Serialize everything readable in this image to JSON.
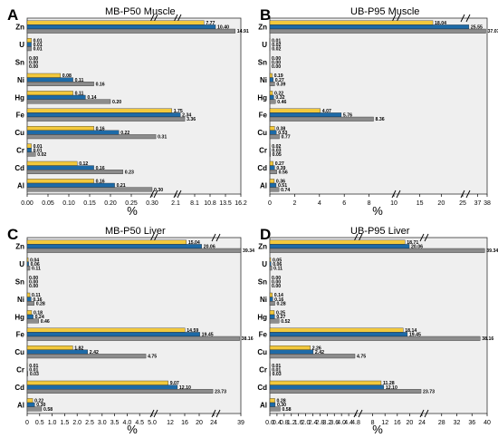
{
  "colors": {
    "bar1": "#f2c83c",
    "bar2": "#1d6aa7",
    "bar3": "#8c8c8c",
    "plot_bg": "#efefef",
    "frame": "#333333"
  },
  "chart_data": [
    {
      "panel": "A",
      "title": "MB-P50 Muscle",
      "type": "bar",
      "orientation": "horizontal",
      "xlabel": "%",
      "categories": [
        "Zn",
        "U",
        "Sn",
        "Ni",
        "Hg",
        "Fe",
        "Cu",
        "Cr",
        "Cd",
        "Al"
      ],
      "segments": [
        {
          "range": [
            0,
            0.3
          ],
          "ticks": [
            "0.00",
            "0.05",
            "0.10",
            "0.15",
            "0.20",
            "0.25",
            "0.30"
          ]
        },
        {
          "range": [
            0.3,
            2.1
          ],
          "ticks": [
            "2.1"
          ]
        },
        {
          "range": [
            2.1,
            16.2
          ],
          "ticks": [
            "8.1",
            "10.8",
            "13.5",
            "16.2"
          ]
        }
      ],
      "series": [
        {
          "values": [
            7.77,
            0.01,
            0.0,
            0.08,
            0.11,
            1.75,
            0.16,
            0.01,
            0.12,
            0.16
          ],
          "labels": [
            "7.77",
            "0.01",
            "0.00",
            "0.08",
            "0.11",
            "1.75",
            "0.16",
            "0.01",
            "0.12",
            "0.16"
          ]
        },
        {
          "values": [
            10.4,
            0.01,
            0.0,
            0.11,
            0.14,
            2.34,
            0.22,
            0.01,
            0.16,
            0.21
          ],
          "labels": [
            "10.40",
            "0.01",
            "0.00",
            "0.11",
            "0.14",
            "2.34",
            "0.22",
            "0.01",
            "0.16",
            "0.21"
          ]
        },
        {
          "values": [
            14.91,
            0.01,
            0.0,
            0.16,
            0.2,
            3.36,
            0.31,
            0.02,
            0.23,
            0.3
          ],
          "labels": [
            "14.91",
            "0.01",
            "0.00",
            "0.16",
            "0.20",
            "3.36",
            "0.31",
            "0.02",
            "0.23",
            "0.30"
          ]
        }
      ]
    },
    {
      "panel": "B",
      "title": "UB-P95 Muscle",
      "type": "bar",
      "orientation": "horizontal",
      "xlabel": "%",
      "categories": [
        "Zn",
        "U",
        "Sn",
        "Ni",
        "Hg",
        "Fe",
        "Cu",
        "Cr",
        "Cd",
        "Al"
      ],
      "segments": [
        {
          "range": [
            0,
            10
          ],
          "ticks": [
            "0",
            "2",
            "4",
            "6",
            "8",
            "10"
          ]
        },
        {
          "range": [
            10,
            25
          ],
          "ticks": [
            "15",
            "20",
            "25"
          ]
        },
        {
          "range": [
            25,
            38
          ],
          "ticks": [
            "37",
            "38"
          ]
        }
      ],
      "series": [
        {
          "values": [
            18.04,
            0.01,
            0.0,
            0.19,
            0.22,
            4.07,
            0.38,
            0.02,
            0.27,
            0.36
          ],
          "labels": [
            "18.04",
            "0.01",
            "0.00",
            "0.19",
            "0.22",
            "4.07",
            "0.38",
            "0.02",
            "0.27",
            "0.36"
          ]
        },
        {
          "values": [
            25.55,
            0.02,
            0.0,
            0.27,
            0.32,
            5.76,
            0.53,
            0.03,
            0.39,
            0.51
          ],
          "labels": [
            "25.55",
            "0.02",
            "0.00",
            "0.27",
            "0.32",
            "5.76",
            "0.53",
            "0.03",
            "0.39",
            "0.51"
          ]
        },
        {
          "values": [
            37.07,
            0.02,
            0.0,
            0.39,
            0.46,
            8.36,
            0.77,
            0.05,
            0.56,
            0.74
          ],
          "labels": [
            "37.07",
            "0.02",
            "0.00",
            "0.39",
            "0.46",
            "8.36",
            "0.77",
            "0.05",
            "0.56",
            "0.74"
          ]
        }
      ]
    },
    {
      "panel": "C",
      "title": "MB-P50 Liver",
      "type": "bar",
      "orientation": "horizontal",
      "xlabel": "%",
      "categories": [
        "Zn",
        "U",
        "Sn",
        "Ni",
        "Hg",
        "Fe",
        "Cu",
        "Cr",
        "Cd",
        "Al"
      ],
      "segments": [
        {
          "range": [
            0,
            5.0
          ],
          "ticks": [
            "0",
            "0.5",
            "1.0",
            "1.5",
            "2.0",
            "2.5",
            "3.0",
            "3.5",
            "4.0",
            "4.5",
            "5.0"
          ]
        },
        {
          "range": [
            5.0,
            24
          ],
          "ticks": [
            "12",
            "16",
            "20",
            "24"
          ]
        },
        {
          "range": [
            24,
            39
          ],
          "ticks": [
            "39"
          ]
        }
      ],
      "series": [
        {
          "values": [
            15.04,
            0.04,
            0.0,
            0.11,
            0.18,
            14.59,
            1.82,
            0.01,
            9.07,
            0.22
          ],
          "labels": [
            "15.04",
            "0.04",
            "0.00",
            "0.11",
            "0.18",
            "14.59",
            "1.82",
            "0.01",
            "9.07",
            "0.22"
          ]
        },
        {
          "values": [
            20.06,
            0.06,
            0.0,
            0.16,
            0.24,
            19.45,
            2.42,
            0.01,
            12.1,
            0.3
          ],
          "labels": [
            "20.06",
            "0.06",
            "0.00",
            "0.16",
            "0.24",
            "19.45",
            "2.42",
            "0.01",
            "12.10",
            "0.30"
          ]
        },
        {
          "values": [
            39.34,
            0.11,
            0.0,
            0.28,
            0.46,
            38.16,
            4.75,
            0.03,
            23.73,
            0.58
          ],
          "labels": [
            "39.34",
            "0.11",
            "0.00",
            "0.28",
            "0.46",
            "38.16",
            "4.75",
            "0.03",
            "23.73",
            "0.58"
          ]
        }
      ]
    },
    {
      "panel": "D",
      "title": "UB-P95 Liver",
      "type": "bar",
      "orientation": "horizontal",
      "xlabel": "%",
      "categories": [
        "Zn",
        "U",
        "Sn",
        "Ni",
        "Hg",
        "Fe",
        "Cu",
        "Cr",
        "Cd",
        "Al"
      ],
      "segments": [
        {
          "range": [
            0,
            4.8
          ],
          "ticks": [
            "0.0",
            "0.4",
            "0.8",
            "1.2",
            "1.6",
            "2.0",
            "2.4",
            "2.8",
            "3.2",
            "3.6",
            "4.0",
            "4.4",
            "4.8"
          ]
        },
        {
          "range": [
            4.8,
            24
          ],
          "ticks": [
            "8",
            "12",
            "16",
            "20",
            "24"
          ]
        },
        {
          "range": [
            24,
            40
          ],
          "ticks": [
            "28",
            "32",
            "36",
            "40"
          ]
        }
      ],
      "series": [
        {
          "values": [
            18.71,
            0.05,
            0.0,
            0.14,
            0.25,
            18.14,
            2.26,
            0.01,
            11.28,
            0.28
          ],
          "labels": [
            "18.71",
            "0.05",
            "0.00",
            "0.14",
            "0.25",
            "18.14",
            "2.26",
            "0.01",
            "11.28",
            "0.28"
          ]
        },
        {
          "values": [
            20.06,
            0.06,
            0.0,
            0.16,
            0.27,
            19.45,
            2.42,
            0.01,
            12.1,
            0.3
          ],
          "labels": [
            "20.06",
            "0.06",
            "0.00",
            "0.16",
            "0.27",
            "19.45",
            "2.42",
            "0.01",
            "12.10",
            "0.30"
          ]
        },
        {
          "values": [
            39.34,
            0.11,
            0.0,
            0.28,
            0.52,
            38.16,
            4.75,
            0.03,
            23.73,
            0.58
          ],
          "labels": [
            "39.34",
            "0.11",
            "0.00",
            "0.28",
            "0.52",
            "38.16",
            "4.75",
            "0.03",
            "23.73",
            "0.58"
          ]
        }
      ]
    }
  ]
}
